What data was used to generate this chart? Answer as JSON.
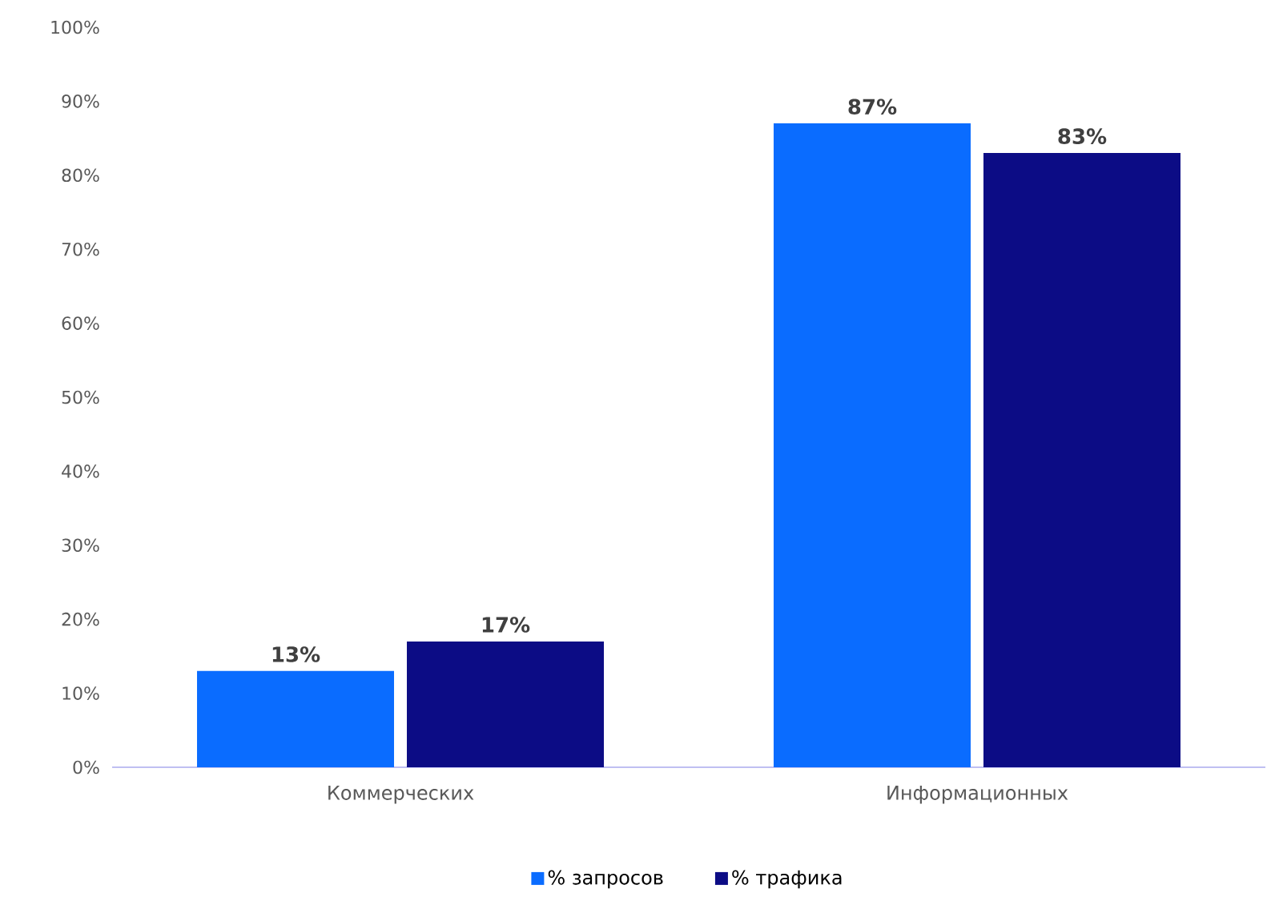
{
  "chart_data": {
    "type": "bar",
    "categories": [
      "Коммерческих",
      "Информационных"
    ],
    "series": [
      {
        "name": "% запросов",
        "color": "#0a6cff",
        "values": [
          13,
          87
        ],
        "value_labels": [
          "13%",
          "87%"
        ]
      },
      {
        "name": "% трафика",
        "color": "#0c0c85",
        "values": [
          17,
          83
        ],
        "value_labels": [
          "17%",
          "83%"
        ]
      }
    ],
    "ylim": [
      0,
      100
    ],
    "yticks": [
      {
        "value": 0,
        "label": "0%"
      },
      {
        "value": 10,
        "label": "10%"
      },
      {
        "value": 20,
        "label": "20%"
      },
      {
        "value": 30,
        "label": "30%"
      },
      {
        "value": 40,
        "label": "40%"
      },
      {
        "value": 50,
        "label": "50%"
      },
      {
        "value": 60,
        "label": "60%"
      },
      {
        "value": 70,
        "label": "70%"
      },
      {
        "value": 80,
        "label": "80%"
      },
      {
        "value": 90,
        "label": "90%"
      },
      {
        "value": 100,
        "label": "100%"
      }
    ],
    "grid": false,
    "legend": "bottom"
  }
}
